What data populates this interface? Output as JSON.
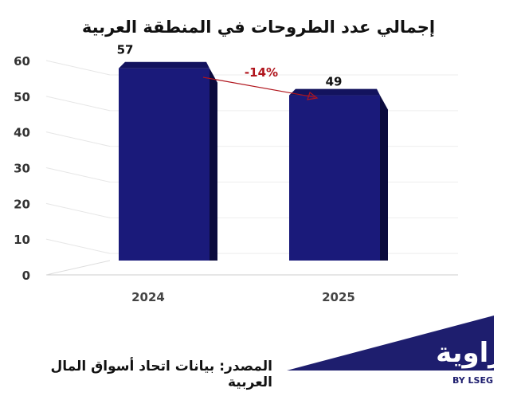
{
  "chart_data": {
    "type": "bar",
    "title": "إجمالي عدد الطروحات في المنطقة العربية",
    "categories": [
      "2024",
      "2025"
    ],
    "values": [
      57,
      49
    ],
    "value_labels": [
      "57",
      "49"
    ],
    "ylim": [
      0,
      60
    ],
    "yticks": [
      "0",
      "10",
      "20",
      "30",
      "40",
      "50",
      "60"
    ],
    "grid": true,
    "legend": "none",
    "bar_color": "#1a1a7a",
    "annotation": {
      "text": "-14%",
      "from": "2024",
      "to": "2025",
      "color": "#b0141c"
    }
  },
  "source": "المصدر: بيانات اتحاد أسواق المال العربية",
  "logo": {
    "word": "زاوية",
    "tagline": "BY LSEG",
    "color": "#1e1e6e"
  }
}
